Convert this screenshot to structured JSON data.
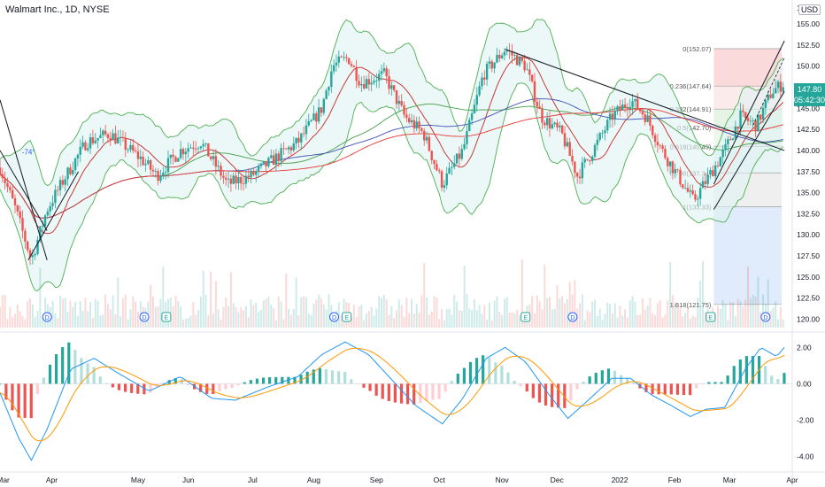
{
  "header": {
    "symbol_title": "Walmart Inc., 1D, NYSE",
    "currency": "USD"
  },
  "last_price": {
    "value": "147.80",
    "countdown": "05:42:30"
  },
  "colors": {
    "up": "#26a69a",
    "down": "#ef5350",
    "bb": "#4caf50",
    "macd": "#2196f3",
    "signal": "#ff9800",
    "ma_red": "#e53935",
    "ma_blue": "#3f51b5",
    "ma_green": "#43a047"
  },
  "chart_data": [
    {
      "type": "candlestick",
      "title": "",
      "x_ticks": [
        "Mar",
        "Apr",
        "May",
        "Jun",
        "Jul",
        "Aug",
        "Sep",
        "Oct",
        "Nov",
        "Dec",
        "2022",
        "Feb",
        "Mar",
        "Apr"
      ],
      "y_ticks": [
        120.0,
        122.5,
        125.0,
        127.5,
        130.0,
        132.5,
        135.0,
        137.5,
        140.0,
        142.5,
        145.0,
        147.5,
        150.0,
        152.5,
        155.0
      ],
      "top_tick_partial": "15",
      "ylim": [
        119,
        157
      ],
      "price_path": [
        {
          "d": 0,
          "p": 138
        },
        {
          "d": 10,
          "p": 133
        },
        {
          "d": 20,
          "p": 127
        },
        {
          "d": 30,
          "p": 133
        },
        {
          "d": 42,
          "p": 137
        },
        {
          "d": 55,
          "p": 141
        },
        {
          "d": 70,
          "p": 142
        },
        {
          "d": 90,
          "p": 139
        },
        {
          "d": 100,
          "p": 137
        },
        {
          "d": 115,
          "p": 140
        },
        {
          "d": 128,
          "p": 141
        },
        {
          "d": 145,
          "p": 136
        },
        {
          "d": 160,
          "p": 137
        },
        {
          "d": 175,
          "p": 139
        },
        {
          "d": 190,
          "p": 141
        },
        {
          "d": 205,
          "p": 145
        },
        {
          "d": 212,
          "p": 150
        },
        {
          "d": 222,
          "p": 151
        },
        {
          "d": 230,
          "p": 148
        },
        {
          "d": 245,
          "p": 149
        },
        {
          "d": 258,
          "p": 144
        },
        {
          "d": 270,
          "p": 142
        },
        {
          "d": 282,
          "p": 136
        },
        {
          "d": 295,
          "p": 140
        },
        {
          "d": 308,
          "p": 149
        },
        {
          "d": 322,
          "p": 152
        },
        {
          "d": 335,
          "p": 150
        },
        {
          "d": 345,
          "p": 144
        },
        {
          "d": 358,
          "p": 142
        },
        {
          "d": 368,
          "p": 137
        },
        {
          "d": 378,
          "p": 140
        },
        {
          "d": 390,
          "p": 144
        },
        {
          "d": 402,
          "p": 146
        },
        {
          "d": 412,
          "p": 144
        },
        {
          "d": 422,
          "p": 140
        },
        {
          "d": 432,
          "p": 137
        },
        {
          "d": 442,
          "p": 134
        },
        {
          "d": 452,
          "p": 137
        },
        {
          "d": 462,
          "p": 140
        },
        {
          "d": 472,
          "p": 144
        },
        {
          "d": 482,
          "p": 143
        },
        {
          "d": 492,
          "p": 147
        },
        {
          "d": 500,
          "p": 148
        }
      ],
      "date_ticks": [
        {
          "label": "Mar",
          "d": 2
        },
        {
          "label": "Apr",
          "d": 33
        },
        {
          "label": "May",
          "d": 88
        },
        {
          "label": "Jun",
          "d": 120
        },
        {
          "label": "Jul",
          "d": 161
        },
        {
          "label": "Aug",
          "d": 200
        },
        {
          "label": "Sep",
          "d": 240
        },
        {
          "label": "Oct",
          "d": 280
        },
        {
          "label": "Nov",
          "d": 320
        },
        {
          "label": "Dec",
          "d": 355
        },
        {
          "label": "2022",
          "d": 395
        },
        {
          "label": "Feb",
          "d": 430
        },
        {
          "label": "Mar",
          "d": 465
        },
        {
          "label": "Apr",
          "d": 505
        }
      ],
      "fibonacci": [
        {
          "label": "0(152.07)",
          "level": 152.07
        },
        {
          "label": "0.236(147.64)",
          "level": 147.64
        },
        {
          "label": "0.382(144.91)",
          "level": 144.91
        },
        {
          "label": "0.5(142.70)",
          "level": 142.7
        },
        {
          "label": "0.618(140.49)",
          "level": 140.49
        },
        {
          "label": "0.786(137.34)",
          "level": 137.34
        },
        {
          "label": "1(133.33)",
          "level": 133.33
        },
        {
          "label": "1.618(121.75)",
          "level": 121.75
        }
      ],
      "annotation": "-74°",
      "event_markers": [
        {
          "label": "D",
          "d": 30
        },
        {
          "label": "D",
          "d": 92
        },
        {
          "label": "E",
          "d": 106
        },
        {
          "label": "D",
          "d": 213
        },
        {
          "label": "E",
          "d": 221
        },
        {
          "label": "E",
          "d": 335
        },
        {
          "label": "D",
          "d": 365
        },
        {
          "label": "E",
          "d": 453
        },
        {
          "label": "D",
          "d": 488
        }
      ]
    },
    {
      "type": "bar+line",
      "title": "",
      "y_ticks": [
        2.0,
        0.0,
        -2.0,
        -4.0
      ],
      "y_tick_labels": [
        "2.00",
        "0.00",
        "-2.00",
        "-4.00"
      ],
      "ylim": [
        -4.6,
        2.6
      ],
      "macd_path": [
        {
          "d": 0,
          "v": -0.5
        },
        {
          "d": 12,
          "v": -3.0
        },
        {
          "d": 20,
          "v": -4.2
        },
        {
          "d": 30,
          "v": -2.5
        },
        {
          "d": 45,
          "v": 0.8
        },
        {
          "d": 60,
          "v": 1.4
        },
        {
          "d": 75,
          "v": 0.6
        },
        {
          "d": 95,
          "v": -0.4
        },
        {
          "d": 115,
          "v": 0.4
        },
        {
          "d": 135,
          "v": -0.8
        },
        {
          "d": 150,
          "v": -0.9
        },
        {
          "d": 170,
          "v": -0.2
        },
        {
          "d": 190,
          "v": 0.4
        },
        {
          "d": 205,
          "v": 1.6
        },
        {
          "d": 220,
          "v": 2.3
        },
        {
          "d": 235,
          "v": 1.6
        },
        {
          "d": 250,
          "v": 0.2
        },
        {
          "d": 265,
          "v": -1.2
        },
        {
          "d": 282,
          "v": -2.2
        },
        {
          "d": 295,
          "v": -0.8
        },
        {
          "d": 310,
          "v": 1.4
        },
        {
          "d": 322,
          "v": 2.0
        },
        {
          "d": 335,
          "v": 1.2
        },
        {
          "d": 350,
          "v": -0.6
        },
        {
          "d": 362,
          "v": -1.9
        },
        {
          "d": 375,
          "v": -0.9
        },
        {
          "d": 390,
          "v": 0.3
        },
        {
          "d": 402,
          "v": 0.3
        },
        {
          "d": 415,
          "v": -0.6
        },
        {
          "d": 428,
          "v": -1.2
        },
        {
          "d": 440,
          "v": -1.8
        },
        {
          "d": 450,
          "v": -1.4
        },
        {
          "d": 462,
          "v": -1.3
        },
        {
          "d": 475,
          "v": 0.8
        },
        {
          "d": 485,
          "v": 2.0
        },
        {
          "d": 495,
          "v": 1.5
        },
        {
          "d": 500,
          "v": 2.0
        }
      ]
    }
  ]
}
